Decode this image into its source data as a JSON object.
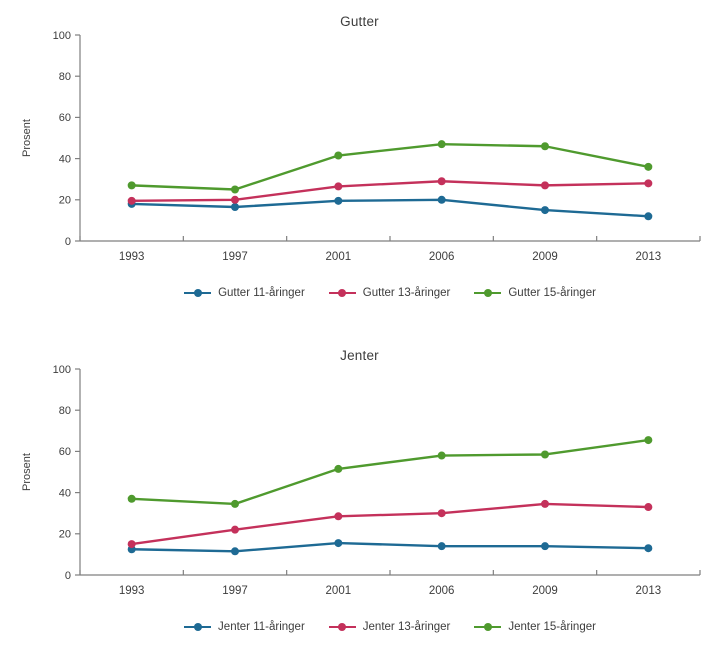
{
  "page": {
    "background": "#ffffff",
    "text_color": "#3d3d3d",
    "axis_color": "#7f7f7f"
  },
  "chart_data": [
    {
      "type": "line",
      "title": "Gutter",
      "ylabel": "Prosent",
      "xlabel": "",
      "ylim": [
        0,
        100
      ],
      "yticks": [
        0,
        20,
        40,
        60,
        80,
        100
      ],
      "grid": false,
      "legend_position": "bottom",
      "categories": [
        "1993",
        "1997",
        "2001",
        "2006",
        "2009",
        "2013"
      ],
      "series": [
        {
          "name": "Gutter 11-åringer",
          "color": "#1e6a94",
          "values": [
            18,
            16.5,
            19.5,
            20,
            15,
            12
          ]
        },
        {
          "name": "Gutter 13-åringer",
          "color": "#c4315b",
          "values": [
            19.5,
            20,
            26.5,
            29,
            27,
            28
          ]
        },
        {
          "name": "Gutter 15-åringer",
          "color": "#4f9a2e",
          "values": [
            27,
            25,
            41.5,
            47,
            46,
            36
          ]
        }
      ]
    },
    {
      "type": "line",
      "title": "Jenter",
      "ylabel": "Prosent",
      "xlabel": "",
      "ylim": [
        0,
        100
      ],
      "yticks": [
        0,
        20,
        40,
        60,
        80,
        100
      ],
      "grid": false,
      "legend_position": "bottom",
      "categories": [
        "1993",
        "1997",
        "2001",
        "2006",
        "2009",
        "2013"
      ],
      "series": [
        {
          "name": "Jenter 11-åringer",
          "color": "#1e6a94",
          "values": [
            12.5,
            11.5,
            15.5,
            14,
            14,
            13
          ]
        },
        {
          "name": "Jenter 13-åringer",
          "color": "#c4315b",
          "values": [
            15,
            22,
            28.5,
            30,
            34.5,
            33
          ]
        },
        {
          "name": "Jenter 15-åringer",
          "color": "#4f9a2e",
          "values": [
            37,
            34.5,
            51.5,
            58,
            58.5,
            65.5
          ]
        }
      ]
    }
  ]
}
